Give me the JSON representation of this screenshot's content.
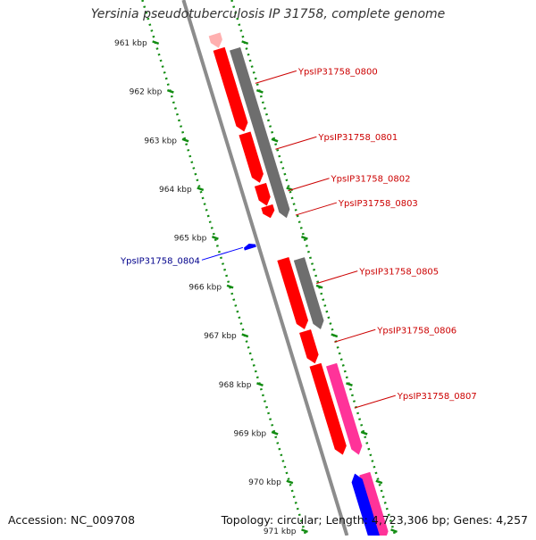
{
  "header": {
    "title": "Yersinia pseudotuberculosis IP 31758, complete genome"
  },
  "footer": {
    "accession": "Accession: NC_009708",
    "summary": "Topology: circular; Length: 4,723,306 bp; Genes: 4,257"
  },
  "colors": {
    "forward_cds": "#ff0000",
    "reverse_cds": "#0000ff",
    "rna_gene": "#ff3399",
    "other_gene": "#6e6e6e",
    "backbone": "#8c8c8c",
    "tick": "#128c12",
    "label_forward": "#cc0000",
    "label_reverse": "#00008b"
  },
  "scale": {
    "unit": "kbp",
    "ticks": [
      {
        "value": 961,
        "label": "961 kbp"
      },
      {
        "value": 962,
        "label": "962 kbp"
      },
      {
        "value": 963,
        "label": "963 kbp"
      },
      {
        "value": 964,
        "label": "964 kbp"
      },
      {
        "value": 965,
        "label": "965 kbp"
      },
      {
        "value": 966,
        "label": "966 kbp"
      },
      {
        "value": 967,
        "label": "967 kbp"
      },
      {
        "value": 968,
        "label": "968 kbp"
      },
      {
        "value": 969,
        "label": "969 kbp"
      },
      {
        "value": 970,
        "label": "970 kbp"
      },
      {
        "value": 971,
        "label": "971 kbp"
      }
    ]
  },
  "genes": [
    {
      "name": "",
      "strand": "+",
      "track": "cds",
      "start": 960.85,
      "end": 961.12,
      "color": "#ffb0b0"
    },
    {
      "name": "YpsIP31758_0800",
      "strand": "+",
      "track": "cds",
      "start": 961.15,
      "end": 962.83,
      "color": "#ff0000"
    },
    {
      "name": "YpsIP31758_0800",
      "strand": "+",
      "track": "gene",
      "start": 961.15,
      "end": 964.6,
      "color": "#6e6e6e"
    },
    {
      "name": "YpsIP31758_0801",
      "strand": "+",
      "track": "cds",
      "start": 962.88,
      "end": 963.88,
      "color": "#ff0000"
    },
    {
      "name": "YpsIP31758_0802",
      "strand": "+",
      "track": "cds",
      "start": 963.93,
      "end": 964.35,
      "color": "#ff0000"
    },
    {
      "name": "YpsIP31758_0803",
      "strand": "+",
      "track": "cds",
      "start": 964.37,
      "end": 964.6,
      "color": "#ff0000"
    },
    {
      "name": "YpsIP31758_0804",
      "strand": "-",
      "track": "cds",
      "start": 965.14,
      "end": 965.23,
      "color": "#0000ff"
    },
    {
      "name": "YpsIP31758_0805",
      "strand": "+",
      "track": "cds",
      "start": 965.45,
      "end": 966.88,
      "color": "#ff0000"
    },
    {
      "name": "YpsIP31758_0805",
      "strand": "+",
      "track": "gene",
      "start": 965.45,
      "end": 966.88,
      "color": "#6e6e6e"
    },
    {
      "name": "YpsIP31758_0806",
      "strand": "+",
      "track": "cds",
      "start": 966.93,
      "end": 967.58,
      "color": "#ff0000"
    },
    {
      "name": "YpsIP31758_0807",
      "strand": "+",
      "track": "cds",
      "start": 967.62,
      "end": 969.45,
      "color": "#ff0000"
    },
    {
      "name": "YpsIP31758_0807",
      "strand": "+",
      "track": "gene",
      "start": 967.62,
      "end": 969.45,
      "color": "#ff3399"
    },
    {
      "name": "",
      "strand": "+",
      "track": "gene",
      "start": 969.85,
      "end": 971.2,
      "color": "#ff3399"
    },
    {
      "name": "",
      "strand": "-",
      "track": "gene",
      "start": 969.85,
      "end": 971.2,
      "color": "#0000ff"
    }
  ],
  "labels": [
    {
      "text": "YpsIP31758_0800",
      "strand": "+",
      "pos": 961.85
    },
    {
      "text": "YpsIP31758_0801",
      "strand": "+",
      "pos": 963.2
    },
    {
      "text": "YpsIP31758_0802",
      "strand": "+",
      "pos": 964.05
    },
    {
      "text": "YpsIP31758_0803",
      "strand": "+",
      "pos": 964.55
    },
    {
      "text": "YpsIP31758_0804",
      "strand": "-",
      "pos": 965.45
    },
    {
      "text": "YpsIP31758_0805",
      "strand": "+",
      "pos": 965.95
    },
    {
      "text": "YpsIP31758_0806",
      "strand": "+",
      "pos": 967.15
    },
    {
      "text": "YpsIP31758_0807",
      "strand": "+",
      "pos": 968.5
    }
  ]
}
